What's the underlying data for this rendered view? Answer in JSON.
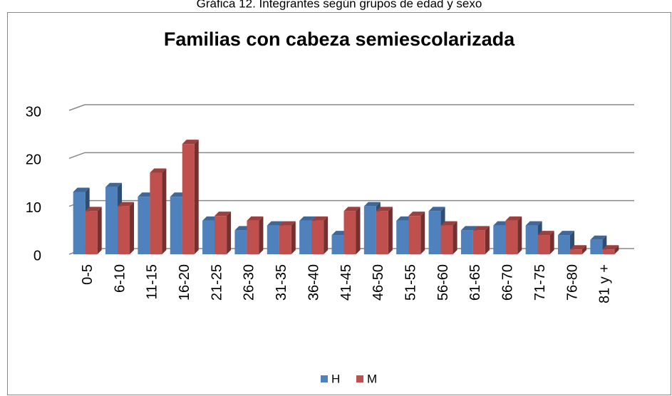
{
  "caption": "Gráfica 12. Integrantes según grupos de edad y sexo",
  "chart_data": {
    "type": "bar3d",
    "title": "Familias con cabeza semiescolarizada",
    "categories": [
      "0-5",
      "6-10",
      "11-15",
      "16-20",
      "21-25",
      "26-30",
      "31-35",
      "36-40",
      "41-45",
      "46-50",
      "51-55",
      "56-60",
      "61-65",
      "66-70",
      "71-75",
      "76-80",
      "81 y +"
    ],
    "series": [
      {
        "name": "H",
        "color": "#4f81bd",
        "values": [
          13,
          14,
          12,
          12,
          7,
          5,
          6,
          7,
          4,
          10,
          7,
          9,
          5,
          6,
          6,
          4,
          3
        ]
      },
      {
        "name": "M",
        "color": "#c0504d",
        "values": [
          9,
          10,
          17,
          23,
          8,
          7,
          6,
          7,
          9,
          9,
          8,
          6,
          5,
          7,
          4,
          1,
          1
        ]
      }
    ],
    "ylim": [
      0,
      30
    ],
    "yticks": [
      0,
      10,
      20,
      30
    ],
    "grid": true,
    "legend": "bottom"
  }
}
